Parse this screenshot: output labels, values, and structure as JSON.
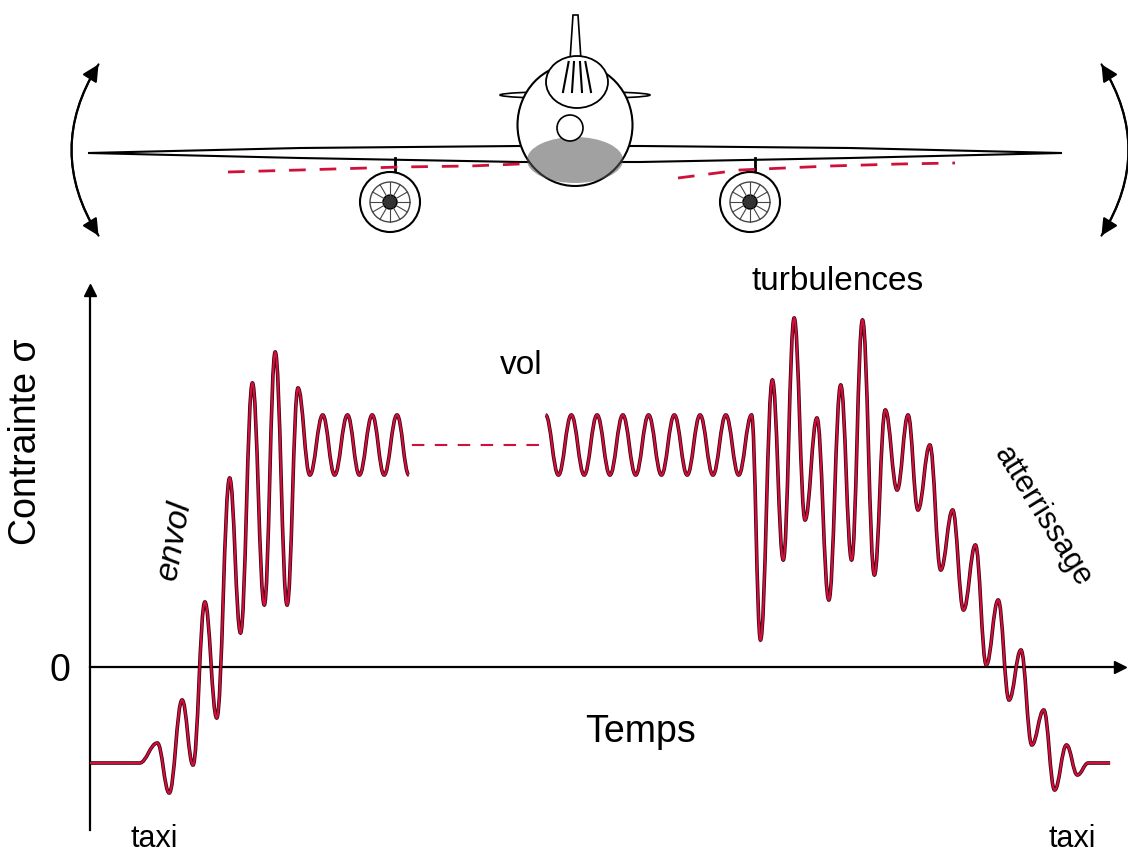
{
  "chart_data": {
    "type": "line",
    "xlabel": "Temps",
    "ylabel": "Contrainte σ",
    "xlim": [
      0,
      1040
    ],
    "ylim": [
      -163,
      377
    ],
    "yticks": [
      0
    ],
    "tick_labels": "y",
    "grid": false,
    "annotations": [
      "envol",
      "vol",
      "turbulences",
      "atterrissage",
      "taxi",
      "taxi"
    ],
    "series": [
      {
        "color": "#d0103a",
        "line_style": "solid",
        "x": [
          0,
          50,
          68,
          80,
          93,
          104,
          116,
          128,
          141,
          152,
          164,
          176,
          187,
          199,
          210,
          222,
          235,
          247,
          260,
          272,
          285,
          297,
          310,
          322
        ],
        "values": [
          -96,
          -96,
          -76,
          -126,
          -33,
          -98,
          65,
          -51,
          189,
          34,
          284,
          62,
          315,
          62,
          279,
          192,
          252,
          192,
          252,
          192,
          252,
          192,
          252,
          192
        ]
      },
      {
        "color": "#d0103a",
        "line_style": "dashed",
        "x": [
          325,
          460
        ],
        "values": [
          222,
          222
        ]
      },
      {
        "color": "#d0103a",
        "line_style": "solid",
        "x": [
          460,
          473,
          486,
          499,
          512,
          525,
          538,
          551,
          564,
          577,
          590,
          603,
          616,
          629,
          642,
          655,
          668,
          677,
          689,
          700,
          711,
          722,
          734,
          746,
          758,
          769,
          780,
          792,
          803,
          815,
          826,
          836,
          848,
          859,
          871,
          882,
          894,
          905,
          917,
          928,
          940,
          951,
          963,
          974,
          986,
          997,
          1008,
          1030
        ],
        "values": [
          252,
          192,
          252,
          192,
          252,
          192,
          252,
          192,
          252,
          192,
          252,
          192,
          252,
          192,
          252,
          192,
          252,
          27,
          287,
          107,
          349,
          147,
          249,
          67,
          282,
          107,
          347,
          92,
          257,
          177,
          252,
          157,
          222,
          97,
          157,
          57,
          122,
          2,
          67,
          -33,
          17,
          -78,
          -43,
          -123,
          -78,
          -108,
          -96,
          -96
        ]
      }
    ]
  }
}
